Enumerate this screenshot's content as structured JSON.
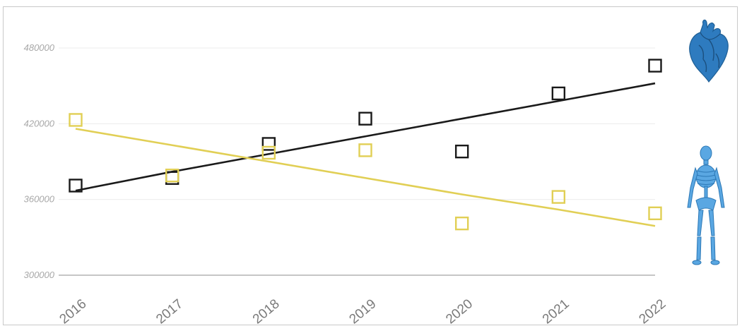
{
  "chart_data": {
    "type": "scatter",
    "title": "",
    "xlabel": "",
    "ylabel": "",
    "categories": [
      "2016",
      "2017",
      "2018",
      "2019",
      "2020",
      "2021",
      "2022"
    ],
    "ylim": [
      300000,
      480000
    ],
    "yticks": [
      "300000",
      "360000",
      "420000",
      "480000"
    ],
    "grid": true,
    "series": [
      {
        "marker_color": "#1a1a1a",
        "values": [
          371000,
          377000,
          404000,
          424000,
          398000,
          444000,
          466000
        ],
        "trendline": [
          367000,
          382000,
          396000,
          410000,
          424000,
          438000,
          452000
        ]
      },
      {
        "marker_color": "#e1cf55",
        "values": [
          423000,
          379000,
          397000,
          399000,
          341000,
          362000,
          349000
        ],
        "trendline": [
          416000,
          403000,
          390000,
          377000,
          364000,
          352000,
          339000
        ]
      }
    ],
    "legend_icons": [
      {
        "icon": "heart-icon",
        "color": "#2e7bbf",
        "series": 0
      },
      {
        "icon": "skeleton-icon",
        "color": "#3a8fd0",
        "series": 1
      }
    ]
  }
}
